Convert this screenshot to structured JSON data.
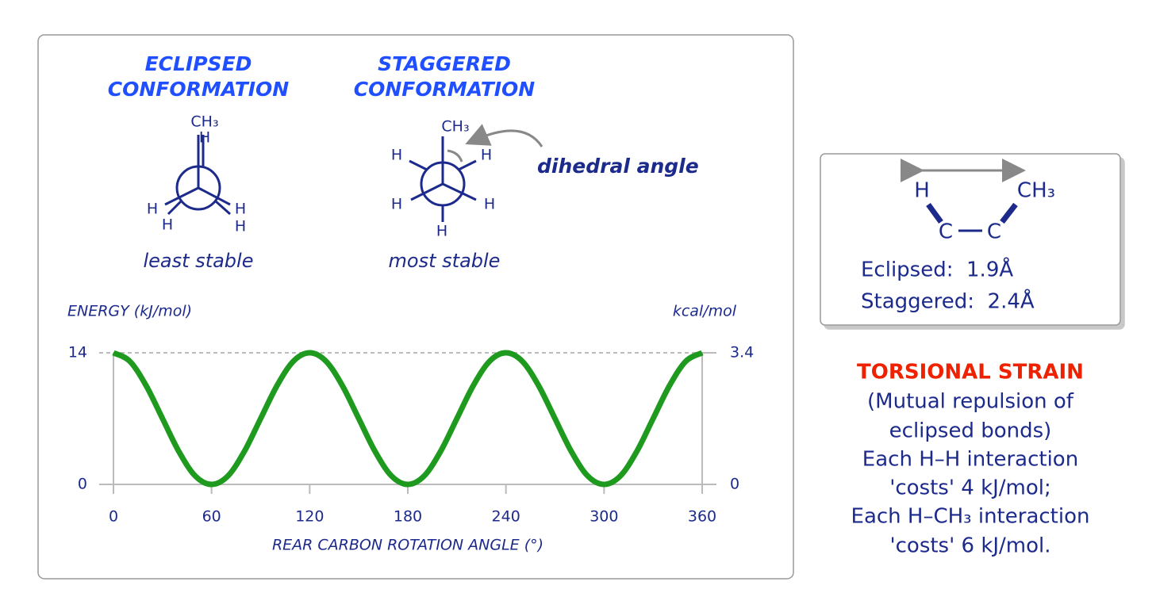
{
  "eclipsed": {
    "title": [
      "ECLIPSED",
      "CONFORMATION"
    ],
    "atoms": [
      "CH₃",
      "H",
      "H",
      "H",
      "H",
      "H"
    ],
    "caption": "least stable"
  },
  "staggered": {
    "title": [
      "STAGGERED",
      "CONFORMATION"
    ],
    "atoms": [
      "CH₃",
      "H",
      "H",
      "H",
      "H",
      "H"
    ],
    "caption": "most stable"
  },
  "dihedral_label": "dihedral angle",
  "chart_data": {
    "type": "line",
    "y_label": "ENERGY (kJ/mol)",
    "y2_label": "kcal/mol",
    "x_label": "REAR CARBON ROTATION ANGLE (°)",
    "x": [
      0,
      10,
      20,
      30,
      40,
      50,
      60,
      70,
      80,
      90,
      100,
      110,
      120,
      130,
      140,
      150,
      160,
      170,
      180,
      190,
      200,
      210,
      220,
      230,
      240,
      250,
      260,
      270,
      280,
      290,
      300,
      310,
      320,
      330,
      340,
      350,
      360
    ],
    "series": [
      {
        "color": "#1e9a1e",
        "values": [
          14,
          13.1,
          10.5,
          7,
          3.5,
          0.9,
          0,
          0.9,
          3.5,
          7,
          10.5,
          13.1,
          14,
          13.1,
          10.5,
          7,
          3.5,
          0.9,
          0,
          0.9,
          3.5,
          7,
          10.5,
          13.1,
          14,
          13.1,
          10.5,
          7,
          3.5,
          0.9,
          0,
          0.9,
          3.5,
          7,
          10.5,
          13.1,
          14
        ]
      }
    ],
    "xlim": [
      0,
      360
    ],
    "xticks": [
      0,
      60,
      120,
      180,
      240,
      300,
      360
    ],
    "ylim": [
      0,
      14
    ],
    "yticks": [
      0,
      14
    ],
    "y2lim": [
      0,
      3.4
    ],
    "y2ticks": [
      0,
      3.4
    ],
    "grid": true
  },
  "distance_box": {
    "atoms": [
      "H",
      "CH₃",
      "C",
      "C"
    ],
    "lines": [
      "Eclipsed:  1.9Å",
      "Staggered:  2.4Å"
    ]
  },
  "torsional_strain": {
    "heading": "TORSIONAL STRAIN",
    "lines": [
      "(Mutual repulsion of",
      "eclipsed bonds)",
      "Each H–H interaction",
      "'costs' 4 kJ/mol;",
      "Each H–CH₃ interaction",
      "'costs' 6 kJ/mol."
    ]
  }
}
